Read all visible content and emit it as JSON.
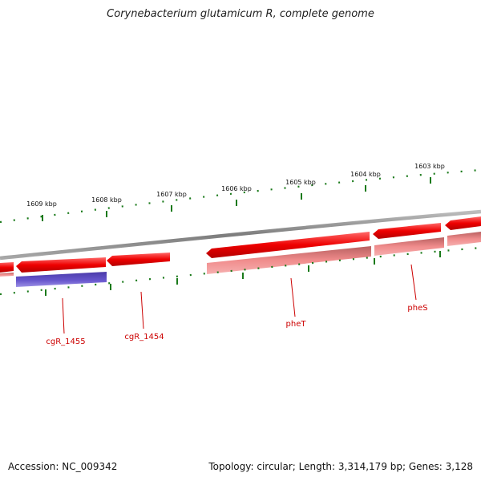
{
  "title": "Corynebacterium glutamicum R, complete genome",
  "scale": {
    "tick_labels": [
      "1609 kbp",
      "1608 kbp",
      "1607 kbp",
      "1606 kbp",
      "1605 kbp",
      "1604 kbp",
      "1603 kbp"
    ]
  },
  "genes": [
    {
      "label": "cgR_1455",
      "strand": "-",
      "color": "#6655cc"
    },
    {
      "label": "cgR_1454",
      "strand": "-",
      "color": "#ee0000"
    },
    {
      "label": "pheT",
      "strand": "-",
      "color": "#ee0000"
    },
    {
      "label": "pheS",
      "strand": "-",
      "color": "#ee0000"
    }
  ],
  "colors": {
    "backbone": "#8c8c8c",
    "cds": "#ee0000",
    "cds_light": "#f08c8c",
    "gene_purple": "#6655cc",
    "tick": "#1a7a1a",
    "label": "#cc0000"
  },
  "footer": {
    "accession": "Accession: NC_009342",
    "summary": "Topology: circular; Length: 3,314,179 bp; Genes: 3,128"
  }
}
